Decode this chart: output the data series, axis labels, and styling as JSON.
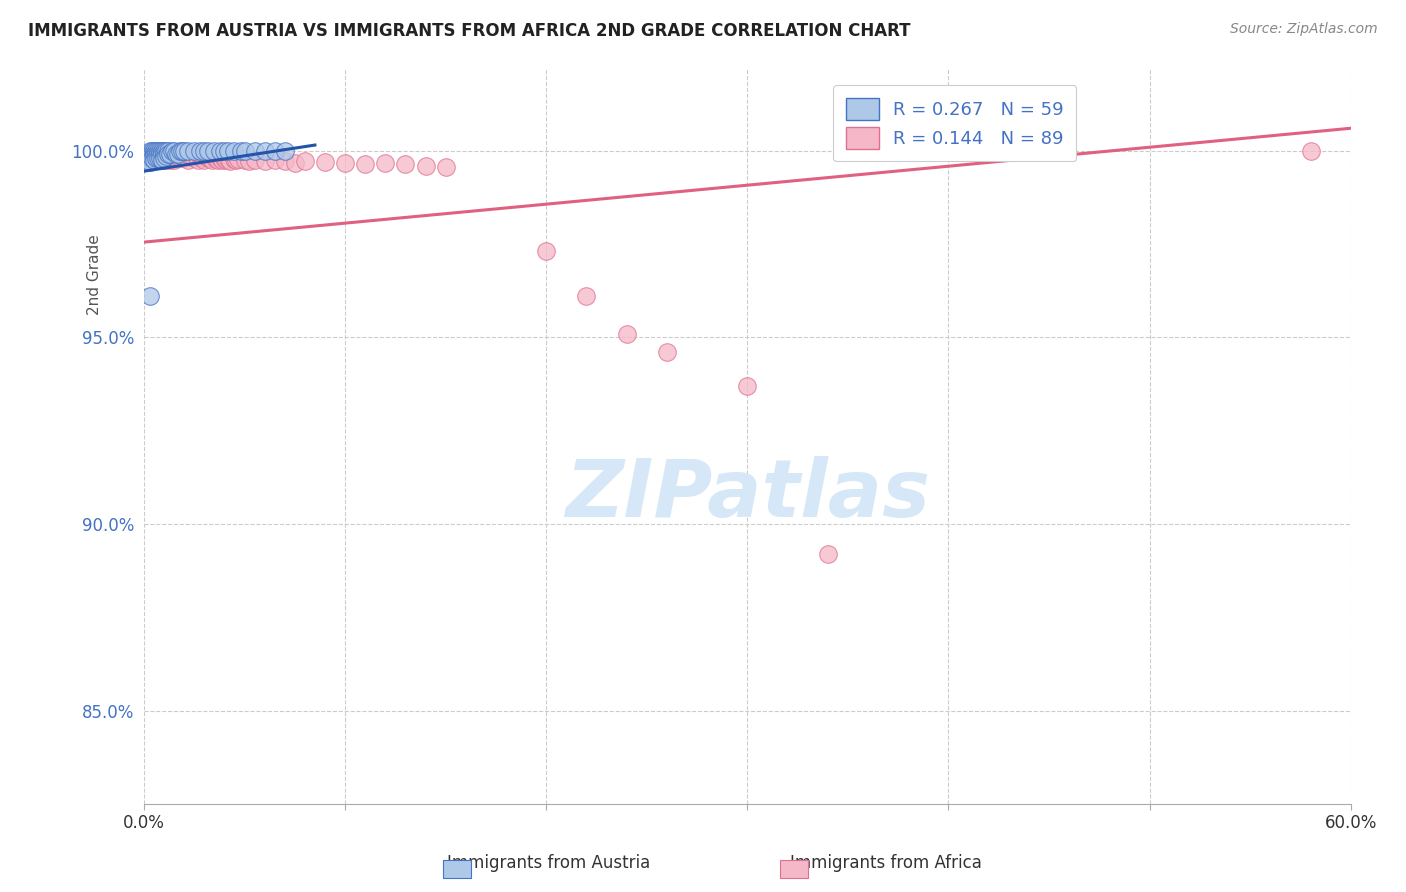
{
  "title": "IMMIGRANTS FROM AUSTRIA VS IMMIGRANTS FROM AFRICA 2ND GRADE CORRELATION CHART",
  "source": "Source: ZipAtlas.com",
  "ylabel": "2nd Grade",
  "ytick_labels": [
    "100.0%",
    "95.0%",
    "90.0%",
    "85.0%"
  ],
  "ytick_values": [
    1.0,
    0.95,
    0.9,
    0.85
  ],
  "xlim": [
    0.0,
    0.6
  ],
  "ylim": [
    0.825,
    1.022
  ],
  "legend_blue_R": "R = 0.267",
  "legend_blue_N": "N = 59",
  "legend_pink_R": "R = 0.144",
  "legend_pink_N": "N = 89",
  "blue_fill_color": "#aec8e8",
  "blue_edge_color": "#4472c4",
  "pink_fill_color": "#f4b8c8",
  "pink_edge_color": "#e07090",
  "blue_line_color": "#2255aa",
  "pink_line_color": "#e06080",
  "blue_scatter_x": [
    0.001,
    0.002,
    0.002,
    0.002,
    0.003,
    0.003,
    0.003,
    0.003,
    0.004,
    0.004,
    0.004,
    0.005,
    0.005,
    0.005,
    0.005,
    0.006,
    0.006,
    0.006,
    0.007,
    0.007,
    0.007,
    0.008,
    0.008,
    0.008,
    0.009,
    0.009,
    0.009,
    0.01,
    0.01,
    0.01,
    0.011,
    0.011,
    0.012,
    0.012,
    0.013,
    0.014,
    0.015,
    0.016,
    0.017,
    0.018,
    0.019,
    0.02,
    0.022,
    0.025,
    0.028,
    0.03,
    0.032,
    0.035,
    0.038,
    0.04,
    0.042,
    0.045,
    0.048,
    0.05,
    0.055,
    0.06,
    0.065,
    0.07,
    0.003
  ],
  "blue_scatter_y": [
    0.999,
    0.9995,
    0.9985,
    0.9975,
    1.0,
    0.999,
    0.998,
    0.997,
    1.0,
    0.999,
    0.998,
    1.0,
    0.999,
    0.9985,
    0.9975,
    1.0,
    0.999,
    0.998,
    1.0,
    0.999,
    0.998,
    1.0,
    0.999,
    0.998,
    1.0,
    0.999,
    0.9975,
    1.0,
    0.999,
    0.998,
    1.0,
    0.9985,
    1.0,
    0.999,
    0.999,
    1.0,
    1.0,
    0.999,
    0.999,
    1.0,
    1.0,
    1.0,
    1.0,
    1.0,
    1.0,
    1.0,
    1.0,
    1.0,
    1.0,
    1.0,
    1.0,
    1.0,
    1.0,
    1.0,
    1.0,
    1.0,
    1.0,
    1.0,
    0.961
  ],
  "pink_scatter_x": [
    0.001,
    0.002,
    0.002,
    0.003,
    0.003,
    0.004,
    0.004,
    0.005,
    0.005,
    0.006,
    0.006,
    0.007,
    0.007,
    0.008,
    0.008,
    0.009,
    0.009,
    0.01,
    0.01,
    0.01,
    0.011,
    0.011,
    0.012,
    0.012,
    0.013,
    0.013,
    0.014,
    0.014,
    0.015,
    0.015,
    0.016,
    0.016,
    0.017,
    0.018,
    0.018,
    0.019,
    0.02,
    0.02,
    0.021,
    0.022,
    0.022,
    0.023,
    0.024,
    0.025,
    0.025,
    0.026,
    0.027,
    0.028,
    0.029,
    0.03,
    0.03,
    0.031,
    0.032,
    0.033,
    0.034,
    0.035,
    0.036,
    0.037,
    0.038,
    0.039,
    0.04,
    0.041,
    0.042,
    0.043,
    0.045,
    0.046,
    0.047,
    0.05,
    0.052,
    0.055,
    0.06,
    0.065,
    0.07,
    0.075,
    0.08,
    0.09,
    0.1,
    0.11,
    0.12,
    0.13,
    0.14,
    0.15,
    0.2,
    0.22,
    0.24,
    0.26,
    0.3,
    0.34,
    0.58
  ],
  "pink_scatter_y": [
    0.9985,
    0.999,
    0.998,
    0.999,
    0.9975,
    0.999,
    0.9975,
    0.999,
    0.9975,
    0.999,
    0.998,
    0.999,
    0.9975,
    0.999,
    0.9975,
    0.999,
    0.998,
    0.999,
    0.9985,
    0.9975,
    0.999,
    0.9975,
    0.999,
    0.998,
    0.999,
    0.9975,
    0.999,
    0.998,
    0.999,
    0.9975,
    0.999,
    0.998,
    0.9985,
    0.999,
    0.998,
    0.9985,
    0.999,
    0.998,
    0.9985,
    0.999,
    0.9975,
    0.9985,
    0.9985,
    0.999,
    0.998,
    0.9985,
    0.9975,
    0.9985,
    0.998,
    0.9985,
    0.9975,
    0.9985,
    0.998,
    0.998,
    0.9975,
    0.9982,
    0.9978,
    0.9975,
    0.998,
    0.9975,
    0.998,
    0.9975,
    0.9978,
    0.9972,
    0.9978,
    0.9975,
    0.9978,
    0.9975,
    0.9972,
    0.9975,
    0.9972,
    0.9975,
    0.9972,
    0.9968,
    0.9972,
    0.997,
    0.9968,
    0.9965,
    0.9968,
    0.9965,
    0.996,
    0.9955,
    0.973,
    0.961,
    0.951,
    0.946,
    0.937,
    0.892,
    1.0
  ],
  "blue_trendline_x": [
    0.0,
    0.085
  ],
  "blue_trendline_y": [
    0.9945,
    1.0015
  ],
  "pink_trendline_x": [
    0.0,
    0.6
  ],
  "pink_trendline_y": [
    0.9755,
    1.006
  ],
  "watermark_text": "ZIPatlas",
  "watermark_color": "#d6e8f7",
  "background_color": "#ffffff",
  "grid_color": "#cccccc"
}
